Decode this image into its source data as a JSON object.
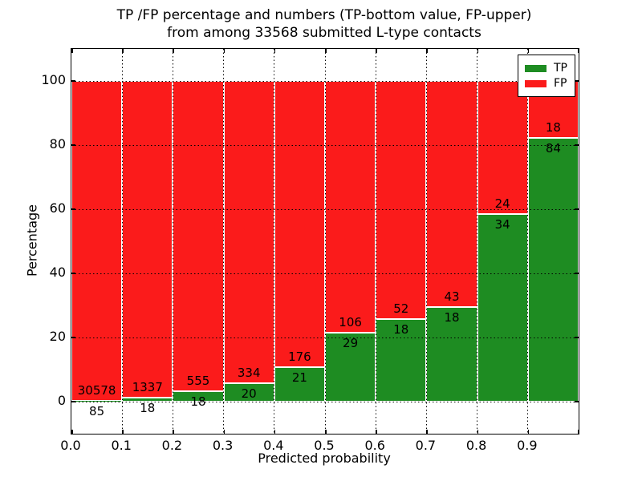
{
  "title": {
    "line1": "TP /FP percentage and numbers (TP-bottom value, FP-upper)",
    "line2": "from among 33568 submitted L-type contacts"
  },
  "axes": {
    "xlabel": "Predicted probability",
    "ylabel": "Percentage",
    "xtick_labels": [
      "0.0",
      "0.1",
      "0.2",
      "0.3",
      "0.4",
      "0.5",
      "0.6",
      "0.7",
      "0.8",
      "0.9"
    ],
    "ytick_labels": [
      "0",
      "20",
      "40",
      "60",
      "80",
      "100"
    ],
    "ytick_values": [
      0,
      20,
      40,
      60,
      80,
      100
    ]
  },
  "legend": {
    "entries": [
      {
        "label": "TP",
        "color": "#1e8c22"
      },
      {
        "label": "FP",
        "color": "#fb1b1b"
      }
    ]
  },
  "colors": {
    "tp": "#1e8c22",
    "fp": "#fb1b1b",
    "bar_edge": "#ffffff",
    "grid": "#000000"
  },
  "chart_data": {
    "type": "bar",
    "stacked": true,
    "normalized_to_percent": true,
    "title": "TP /FP percentage and numbers (TP-bottom value, FP-upper) from among 33568 submitted L-type contacts",
    "xlabel": "Predicted probability",
    "ylabel": "Percentage",
    "xlim": [
      0.0,
      1.0
    ],
    "ylim": [
      -10,
      110
    ],
    "grid": true,
    "legend_position": "upper right",
    "bin_edges": [
      0.0,
      0.1,
      0.2,
      0.3,
      0.4,
      0.5,
      0.6,
      0.7,
      0.8,
      0.9,
      1.0
    ],
    "categories": [
      "0.0",
      "0.1",
      "0.2",
      "0.3",
      "0.4",
      "0.5",
      "0.6",
      "0.7",
      "0.8",
      "0.9"
    ],
    "series": [
      {
        "name": "TP",
        "color": "#1e8c22",
        "counts": [
          85,
          18,
          18,
          20,
          21,
          29,
          18,
          18,
          34,
          84
        ]
      },
      {
        "name": "FP",
        "color": "#fb1b1b",
        "counts": [
          30578,
          1337,
          555,
          334,
          176,
          106,
          52,
          43,
          24,
          18
        ]
      }
    ],
    "total_contacts": 33568,
    "tp_percent": [
      0.28,
      1.33,
      3.14,
      5.65,
      10.66,
      21.48,
      25.71,
      29.51,
      58.62,
      82.35
    ]
  }
}
